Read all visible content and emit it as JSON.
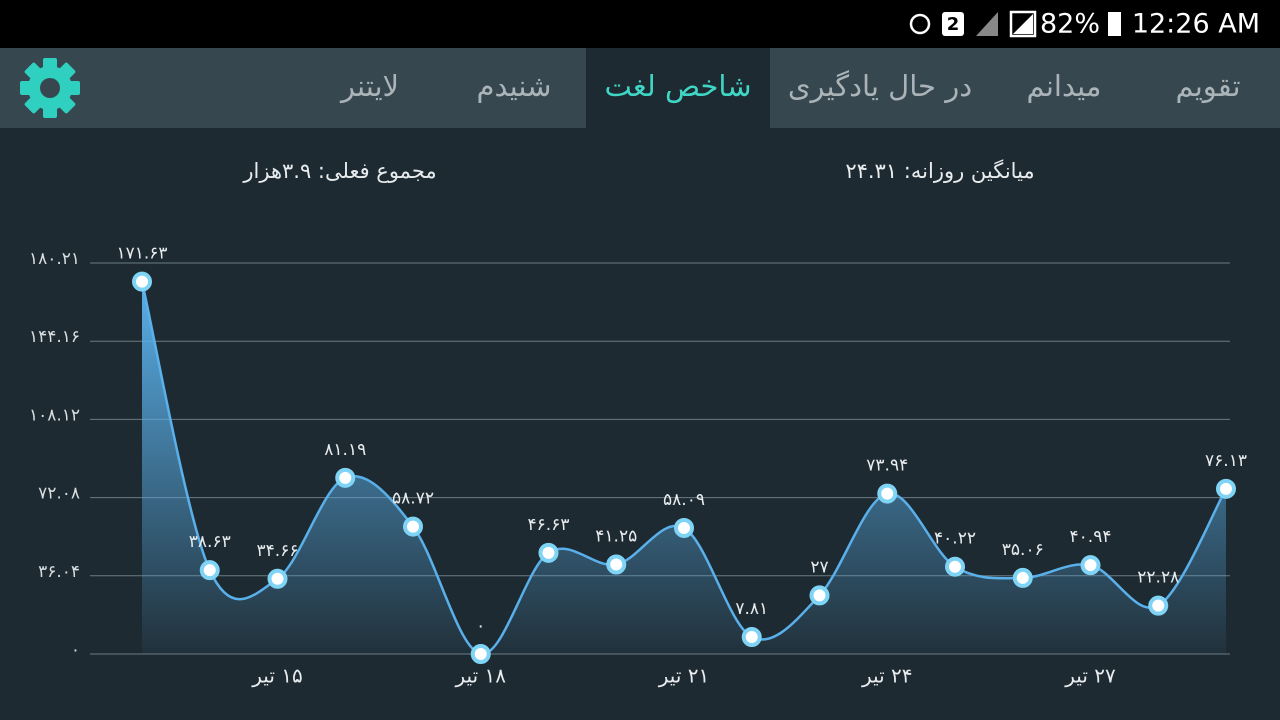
{
  "status_bar": {
    "badge": "2",
    "battery": "82%",
    "time": "12:26 AM"
  },
  "tabs": [
    "تقویم",
    "میدانم",
    "در حال یادگیری",
    "شاخص لغت",
    "شنیدم",
    "لایتنر"
  ],
  "active_tab": 3,
  "stats": {
    "daily_average": "میانگین روزانه: ۲۴.۳۱",
    "current_total": "مجموع فعلی: ۳.۹هزار"
  },
  "chart_data": {
    "type": "area",
    "categories": [
      null,
      null,
      "۱۵ تیر",
      null,
      null,
      "۱۸ تیر",
      null,
      null,
      "۲۱ تیر",
      null,
      null,
      "۲۴ تیر",
      null,
      null,
      "۲۷ تیر",
      null,
      null
    ],
    "values": [
      171.63,
      38.63,
      34.66,
      81.19,
      58.72,
      0,
      46.63,
      41.25,
      58.09,
      7.81,
      27,
      73.94,
      40.22,
      35.06,
      40.94,
      22.28,
      76.13
    ],
    "value_labels": [
      "۱۷۱.۶۳",
      "۳۸.۶۳",
      "۳۴.۶۶",
      "۸۱.۱۹",
      "۵۸.۷۲",
      "۰",
      "۴۶.۶۳",
      "۴۱.۲۵",
      "۵۸.۰۹",
      "۷.۸۱",
      "۲۷",
      "۷۳.۹۴",
      "۴۰.۲۲",
      "۳۵.۰۶",
      "۴۰.۹۴",
      "۲۲.۲۸",
      "۷۶.۱۳"
    ],
    "color": "#5ab0ea",
    "ylim": [
      0,
      180.21
    ],
    "yticks": [
      {
        "value": 0,
        "label": "۰"
      },
      {
        "value": 36.04,
        "label": "۳۶.۰۴"
      },
      {
        "value": 72.08,
        "label": "۷۲.۰۸"
      },
      {
        "value": 108.12,
        "label": "۱۰۸.۱۲"
      },
      {
        "value": 144.16,
        "label": "۱۴۴.۱۶"
      },
      {
        "value": 180.21,
        "label": "۱۸۰.۲۱"
      }
    ],
    "grid": true
  }
}
